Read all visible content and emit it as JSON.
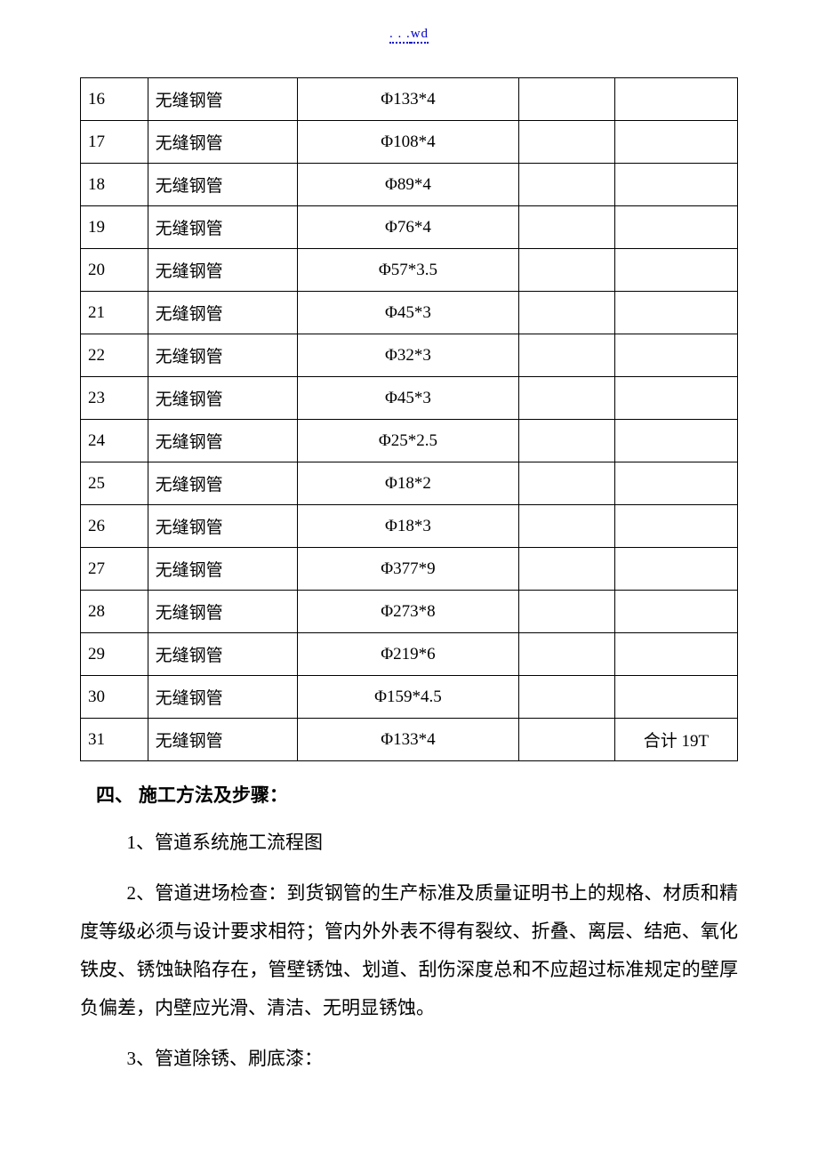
{
  "header": {
    "dots": ". . .",
    "wd": "wd"
  },
  "table": {
    "rows": [
      {
        "idx": "16",
        "name": "无缝钢管",
        "spec": "Φ133*4",
        "c4": "",
        "remark": ""
      },
      {
        "idx": "17",
        "name": "无缝钢管",
        "spec": "Φ108*4",
        "c4": "",
        "remark": ""
      },
      {
        "idx": "18",
        "name": "无缝钢管",
        "spec": "Φ89*4",
        "c4": "",
        "remark": ""
      },
      {
        "idx": "19",
        "name": "无缝钢管",
        "spec": "Φ76*4",
        "c4": "",
        "remark": ""
      },
      {
        "idx": "20",
        "name": "无缝钢管",
        "spec": "Φ57*3.5",
        "c4": "",
        "remark": ""
      },
      {
        "idx": "21",
        "name": "无缝钢管",
        "spec": "Φ45*3",
        "c4": "",
        "remark": ""
      },
      {
        "idx": "22",
        "name": "无缝钢管",
        "spec": "Φ32*3",
        "c4": "",
        "remark": ""
      },
      {
        "idx": "23",
        "name": "无缝钢管",
        "spec": "Φ45*3",
        "c4": "",
        "remark": ""
      },
      {
        "idx": "24",
        "name": "无缝钢管",
        "spec": "Φ25*2.5",
        "c4": "",
        "remark": ""
      },
      {
        "idx": "25",
        "name": "无缝钢管",
        "spec": "Φ18*2",
        "c4": "",
        "remark": ""
      },
      {
        "idx": "26",
        "name": "无缝钢管",
        "spec": "Φ18*3",
        "c4": "",
        "remark": ""
      },
      {
        "idx": "27",
        "name": "无缝钢管",
        "spec": "Φ377*9",
        "c4": "",
        "remark": ""
      },
      {
        "idx": "28",
        "name": "无缝钢管",
        "spec": "Φ273*8",
        "c4": "",
        "remark": ""
      },
      {
        "idx": "29",
        "name": "无缝钢管",
        "spec": "Φ219*6",
        "c4": "",
        "remark": ""
      },
      {
        "idx": "30",
        "name": "无缝钢管",
        "spec": "Φ159*4.5",
        "c4": "",
        "remark": ""
      },
      {
        "idx": "31",
        "name": "无缝钢管",
        "spec": "Φ133*4",
        "c4": "",
        "remark": "合计 19T"
      }
    ]
  },
  "section": {
    "heading": "四、 施工方法及步骤：",
    "paragraphs": [
      "1、管道系统施工流程图",
      "2、管道进场检查：到货钢管的生产标准及质量证明书上的规格、材质和精度等级必须与设计要求相符；管内外外表不得有裂纹、折叠、离层、结疤、氧化铁皮、锈蚀缺陷存在，管壁锈蚀、划道、刮伤深度总和不应超过标准规定的壁厚负偏差，内壁应光滑、清洁、无明显锈蚀。",
      "3、管道除锈、刷底漆："
    ]
  }
}
